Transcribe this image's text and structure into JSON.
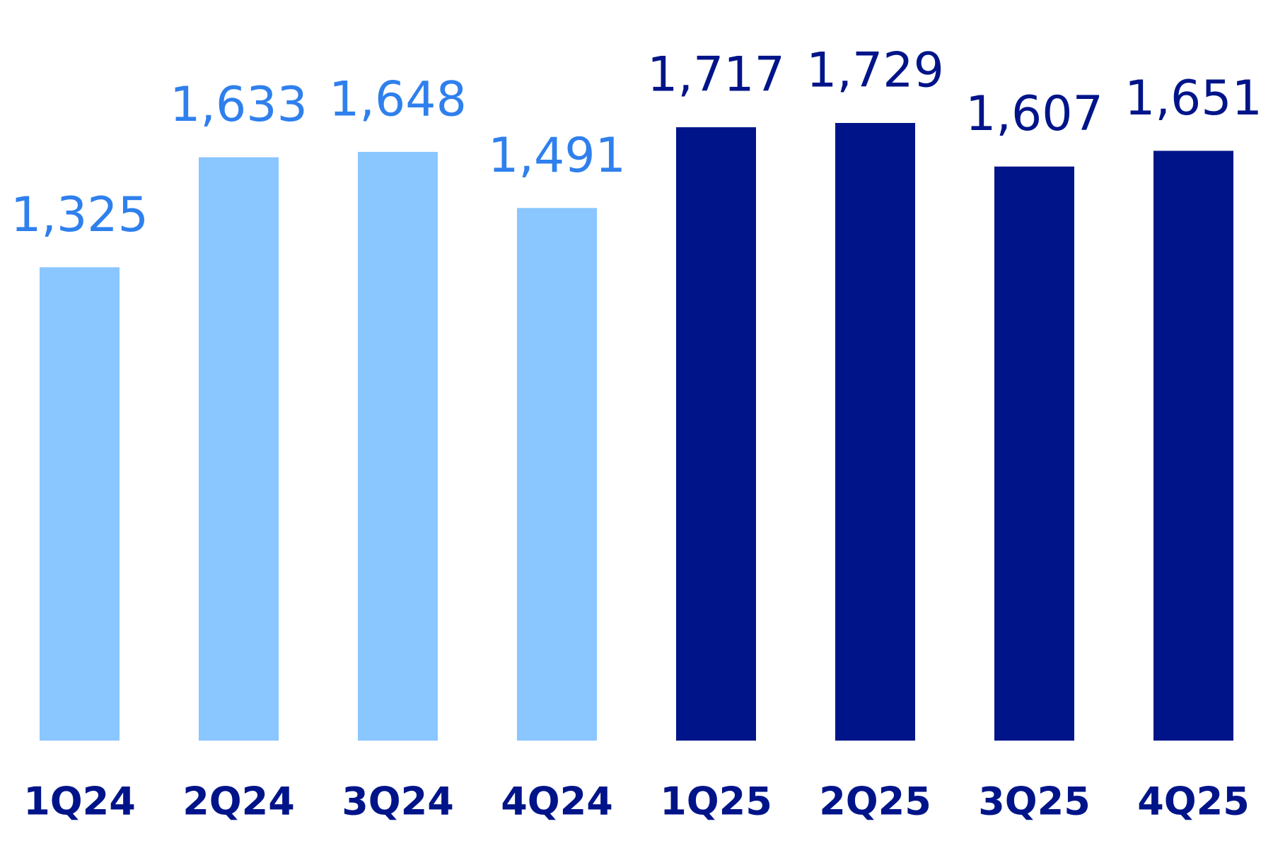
{
  "chart_data": {
    "type": "bar",
    "categories": [
      "1Q24",
      "2Q24",
      "3Q24",
      "4Q24",
      "1Q25",
      "2Q25",
      "3Q25",
      "4Q25"
    ],
    "values": [
      1325,
      1633,
      1648,
      1491,
      1717,
      1729,
      1607,
      1651
    ],
    "value_labels": [
      "1,325",
      "1,633",
      "1,648",
      "1,491",
      "1,717",
      "1,729",
      "1,607",
      "1,651"
    ],
    "colors": [
      "#8ac6ff",
      "#8ac6ff",
      "#8ac6ff",
      "#8ac6ff",
      "#001489",
      "#001489",
      "#001489",
      "#001489"
    ],
    "value_label_colors": [
      "#2f80ed",
      "#2f80ed",
      "#2f80ed",
      "#2f80ed",
      "#001489",
      "#001489",
      "#001489",
      "#001489"
    ],
    "category_label_color": "#001489"
  }
}
